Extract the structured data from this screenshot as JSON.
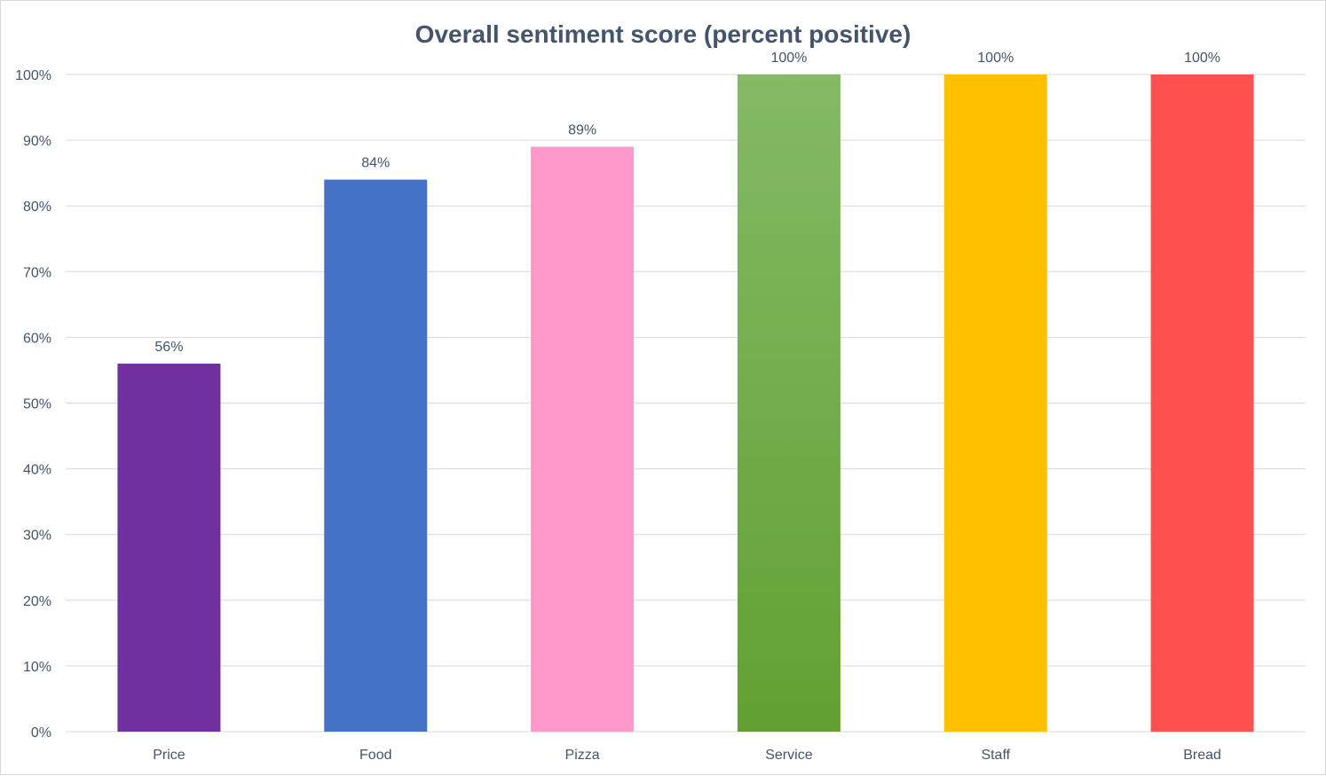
{
  "chart_data": {
    "type": "bar",
    "title": "Overall sentiment score (percent positive)",
    "xlabel": "",
    "ylabel": "",
    "categories": [
      "Price",
      "Food",
      "Pizza",
      "Service",
      "Staff",
      "Bread"
    ],
    "values": [
      56,
      84,
      89,
      100,
      100,
      100
    ],
    "data_labels": [
      "56%",
      "84%",
      "89%",
      "100%",
      "100%",
      "100%"
    ],
    "ylim": [
      0,
      100
    ],
    "yticks": [
      0,
      10,
      20,
      30,
      40,
      50,
      60,
      70,
      80,
      90,
      100
    ],
    "ytick_labels": [
      "0%",
      "10%",
      "20%",
      "30%",
      "40%",
      "50%",
      "60%",
      "70%",
      "80%",
      "90%",
      "100%"
    ],
    "grid": true,
    "legend": "none",
    "colors": [
      "#7030a0",
      "#4472c4",
      "#ff99cc",
      "#70ad47",
      "#ffc000",
      "#ff5050"
    ],
    "service_gradient": [
      "#85b965",
      "#62a033"
    ]
  }
}
